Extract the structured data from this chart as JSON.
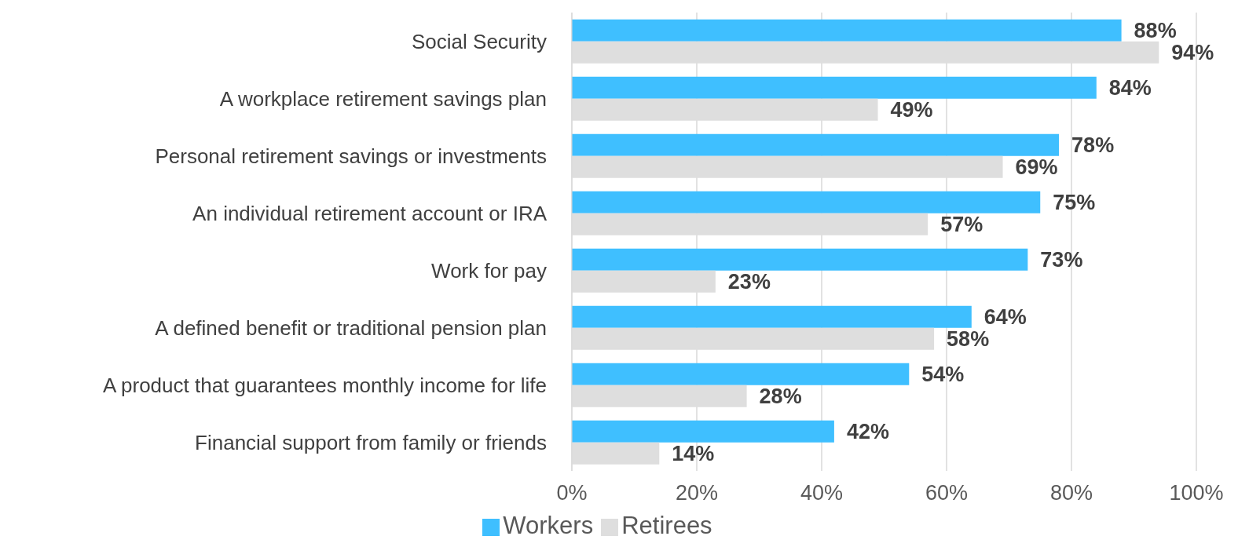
{
  "chart_data": {
    "type": "bar",
    "orientation": "horizontal",
    "categories": [
      "Social Security",
      "A workplace retirement savings plan",
      "Personal retirement savings or investments",
      "An individual retirement account or IRA",
      "Work for pay",
      "A defined benefit or traditional pension plan",
      "A product that guarantees monthly income for life",
      "Financial support from family or friends"
    ],
    "series": [
      {
        "name": "Workers",
        "color": "#3fbfff",
        "values": [
          88,
          84,
          78,
          75,
          73,
          64,
          54,
          42
        ],
        "value_labels": [
          "88%",
          "84%",
          "78%",
          "75%",
          "73%",
          "64%",
          "54%",
          "42%"
        ]
      },
      {
        "name": "Retirees",
        "color": "#dedede",
        "values": [
          94,
          49,
          69,
          57,
          23,
          58,
          28,
          14
        ],
        "value_labels": [
          "94%",
          "49%",
          "69%",
          "57%",
          "23%",
          "58%",
          "28%",
          "14%"
        ]
      }
    ],
    "xlim": [
      0,
      100
    ],
    "xticks": [
      {
        "value": 0,
        "label": "0%"
      },
      {
        "value": 20,
        "label": "20%"
      },
      {
        "value": 40,
        "label": "40%"
      },
      {
        "value": 60,
        "label": "60%"
      },
      {
        "value": 80,
        "label": "80%"
      },
      {
        "value": 100,
        "label": "100%"
      }
    ],
    "grid": "x",
    "legend": "bottom"
  }
}
